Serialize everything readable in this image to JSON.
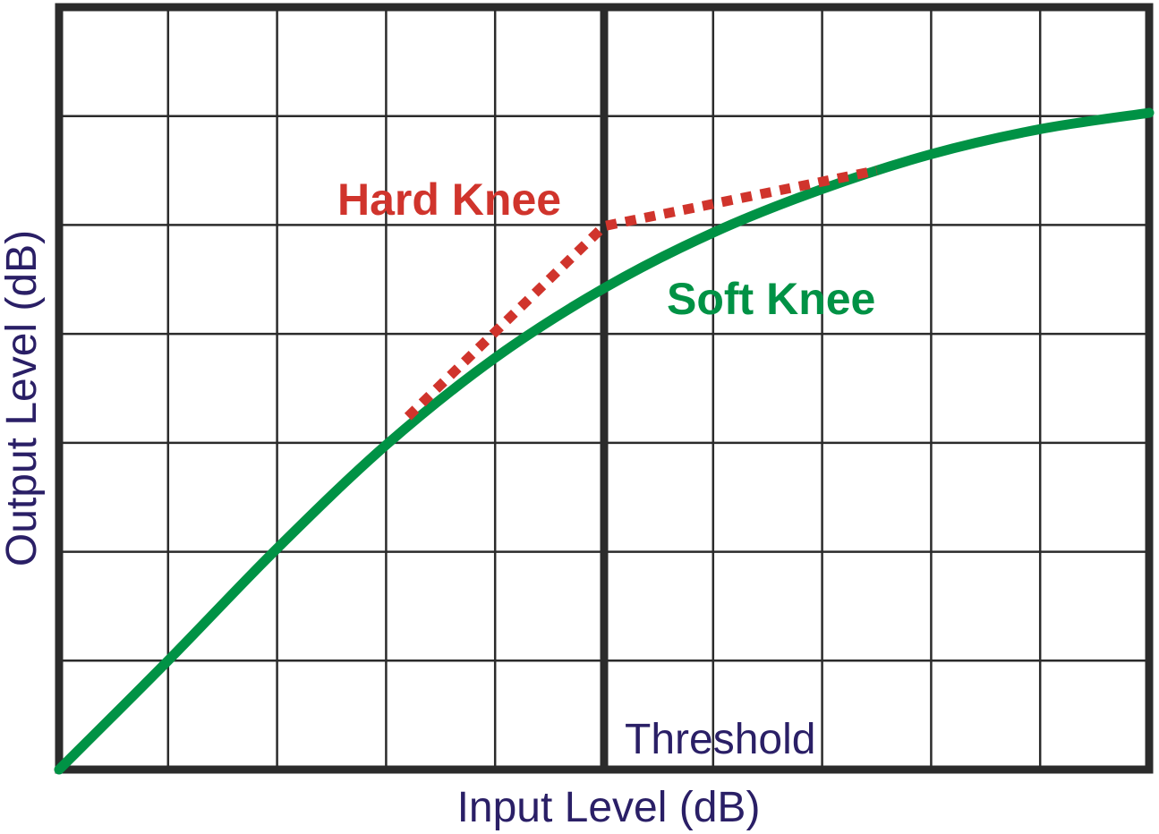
{
  "chart_data": {
    "type": "line",
    "title": "",
    "xlabel": "Input Level (dB)",
    "ylabel": "Output Level (dB)",
    "xlim": [
      0,
      10
    ],
    "ylim": [
      0,
      7
    ],
    "grid": true,
    "tick_labels_shown": false,
    "threshold": {
      "x": 5,
      "label": "Threshold"
    },
    "series": [
      {
        "name": "Soft Knee",
        "color": "#009245",
        "style": "solid",
        "points": [
          [
            0,
            0
          ],
          [
            1,
            1
          ],
          [
            2,
            2.03
          ],
          [
            3,
            2.98
          ],
          [
            4,
            3.78
          ],
          [
            5,
            4.42
          ],
          [
            6,
            4.93
          ],
          [
            7,
            5.33
          ],
          [
            8,
            5.65
          ],
          [
            9,
            5.88
          ],
          [
            10,
            6.03
          ]
        ]
      },
      {
        "name": "Hard Knee",
        "color": "#d0342c",
        "style": "dotted",
        "points": [
          [
            3.2,
            3.24
          ],
          [
            5,
            4.99
          ],
          [
            7.5,
            5.5
          ]
        ]
      }
    ],
    "annotations": [
      {
        "text": "Hard Knee",
        "series": "Hard Knee",
        "color": "#d0342c"
      },
      {
        "text": "Soft Knee",
        "series": "Soft Knee",
        "color": "#009245"
      }
    ]
  },
  "colors": {
    "frame": "#2b2b2b",
    "axis_text": "#2a1f66"
  }
}
